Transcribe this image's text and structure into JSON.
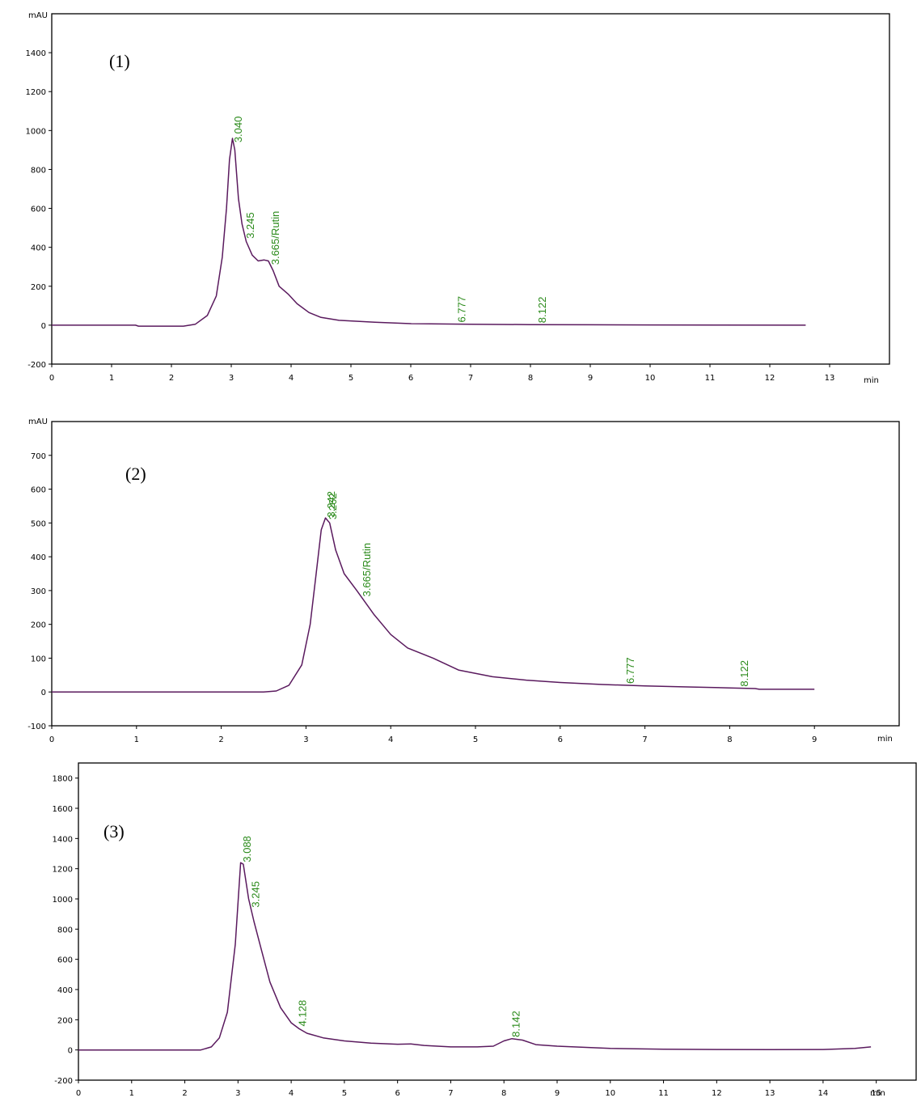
{
  "chart_data": [
    {
      "type": "line",
      "panel_label": "(1)",
      "ylabel": "mAU",
      "xlabel": "min",
      "xlim": [
        0,
        14
      ],
      "ylim": [
        -200,
        1600
      ],
      "xticks": [
        0,
        1,
        2,
        3,
        4,
        5,
        6,
        7,
        8,
        9,
        10,
        11,
        12,
        13
      ],
      "yticks": [
        -200,
        0,
        200,
        400,
        600,
        800,
        1000,
        1200,
        1400
      ],
      "trace": [
        [
          0,
          0
        ],
        [
          1.4,
          0
        ],
        [
          1.45,
          -5
        ],
        [
          2.2,
          -5
        ],
        [
          2.4,
          5
        ],
        [
          2.6,
          50
        ],
        [
          2.75,
          150
        ],
        [
          2.85,
          350
        ],
        [
          2.92,
          600
        ],
        [
          2.97,
          850
        ],
        [
          3.02,
          960
        ],
        [
          3.06,
          900
        ],
        [
          3.12,
          650
        ],
        [
          3.18,
          520
        ],
        [
          3.25,
          430
        ],
        [
          3.35,
          360
        ],
        [
          3.45,
          330
        ],
        [
          3.55,
          335
        ],
        [
          3.62,
          330
        ],
        [
          3.7,
          280
        ],
        [
          3.8,
          200
        ],
        [
          3.95,
          160
        ],
        [
          4.1,
          110
        ],
        [
          4.3,
          65
        ],
        [
          4.5,
          40
        ],
        [
          4.8,
          25
        ],
        [
          5.4,
          15
        ],
        [
          6.0,
          8
        ],
        [
          7.0,
          5
        ],
        [
          8.0,
          3
        ],
        [
          9.0,
          2
        ],
        [
          10.0,
          1
        ],
        [
          12.6,
          0
        ]
      ],
      "peaks": [
        {
          "x": 3.04,
          "label": "3.040"
        },
        {
          "x": 3.245,
          "label": "3.245"
        },
        {
          "x": 3.665,
          "label": "3.665/Rutin"
        },
        {
          "x": 6.777,
          "label": "6.777"
        },
        {
          "x": 8.122,
          "label": "8.122"
        }
      ]
    },
    {
      "type": "line",
      "panel_label": "(2)",
      "ylabel": "mAU",
      "xlabel": "min",
      "xlim": [
        0,
        10
      ],
      "ylim": [
        -100,
        800
      ],
      "xticks": [
        0,
        1,
        2,
        3,
        4,
        5,
        6,
        7,
        8,
        9
      ],
      "yticks": [
        -100,
        0,
        100,
        200,
        300,
        400,
        500,
        600,
        700
      ],
      "trace": [
        [
          0,
          0
        ],
        [
          2.5,
          0
        ],
        [
          2.65,
          3
        ],
        [
          2.8,
          20
        ],
        [
          2.95,
          80
        ],
        [
          3.05,
          200
        ],
        [
          3.12,
          350
        ],
        [
          3.18,
          480
        ],
        [
          3.23,
          515
        ],
        [
          3.28,
          500
        ],
        [
          3.35,
          420
        ],
        [
          3.45,
          350
        ],
        [
          3.6,
          300
        ],
        [
          3.8,
          230
        ],
        [
          4.0,
          170
        ],
        [
          4.2,
          130
        ],
        [
          4.5,
          100
        ],
        [
          4.8,
          65
        ],
        [
          5.2,
          45
        ],
        [
          5.6,
          35
        ],
        [
          6.0,
          28
        ],
        [
          6.5,
          22
        ],
        [
          7.0,
          18
        ],
        [
          7.5,
          15
        ],
        [
          8.0,
          12
        ],
        [
          8.3,
          10
        ],
        [
          8.35,
          8
        ],
        [
          9.0,
          8
        ]
      ],
      "peaks": [
        {
          "x": 3.242,
          "label": "3.242"
        },
        {
          "x": 3.262,
          "label": "3.262"
        },
        {
          "x": 3.665,
          "label": "3.665/Rutin"
        },
        {
          "x": 6.777,
          "label": "6.777"
        },
        {
          "x": 8.122,
          "label": "8.122"
        }
      ]
    },
    {
      "type": "line",
      "panel_label": "(3)",
      "ylabel": "",
      "xlabel": "min",
      "xlim": [
        0,
        15.75
      ],
      "ylim": [
        -200,
        1900
      ],
      "xticks": [
        0,
        1,
        2,
        3,
        4,
        5,
        6,
        7,
        8,
        9,
        10,
        11,
        12,
        13,
        14,
        15
      ],
      "yticks": [
        -200,
        0,
        200,
        400,
        600,
        800,
        1000,
        1200,
        1400,
        1600,
        1800
      ],
      "trace": [
        [
          0,
          0
        ],
        [
          2.3,
          0
        ],
        [
          2.5,
          20
        ],
        [
          2.65,
          80
        ],
        [
          2.8,
          250
        ],
        [
          2.95,
          700
        ],
        [
          3.05,
          1240
        ],
        [
          3.1,
          1230
        ],
        [
          3.2,
          1000
        ],
        [
          3.3,
          850
        ],
        [
          3.45,
          650
        ],
        [
          3.6,
          450
        ],
        [
          3.8,
          280
        ],
        [
          4.0,
          180
        ],
        [
          4.15,
          140
        ],
        [
          4.3,
          110
        ],
        [
          4.6,
          80
        ],
        [
          5.0,
          60
        ],
        [
          5.5,
          45
        ],
        [
          6.0,
          38
        ],
        [
          6.25,
          40
        ],
        [
          6.5,
          30
        ],
        [
          7.0,
          20
        ],
        [
          7.5,
          20
        ],
        [
          7.8,
          25
        ],
        [
          8.0,
          60
        ],
        [
          8.15,
          75
        ],
        [
          8.35,
          65
        ],
        [
          8.6,
          35
        ],
        [
          9.0,
          25
        ],
        [
          10.0,
          10
        ],
        [
          11.0,
          5
        ],
        [
          12.0,
          3
        ],
        [
          13.0,
          2
        ],
        [
          14.0,
          3
        ],
        [
          14.6,
          10
        ],
        [
          14.9,
          20
        ]
      ],
      "peaks": [
        {
          "x": 3.088,
          "label": "3.088"
        },
        {
          "x": 3.245,
          "label": "3.245"
        },
        {
          "x": 4.128,
          "label": "4.128"
        },
        {
          "x": 8.142,
          "label": "8.142"
        }
      ]
    }
  ]
}
